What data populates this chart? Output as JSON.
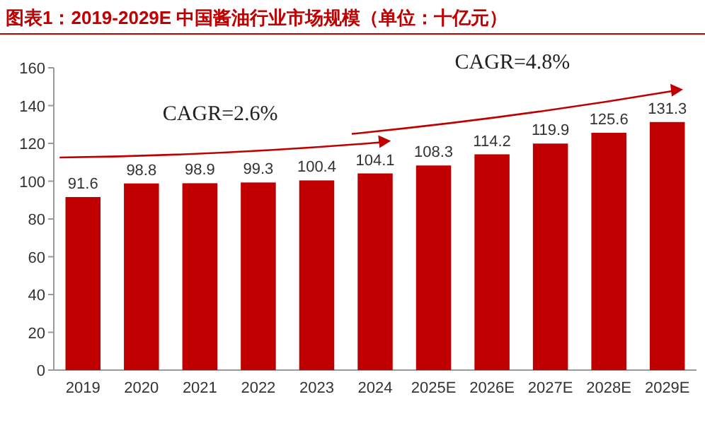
{
  "chart_data": {
    "type": "bar",
    "title": "图表1：2019-2029E 中国酱油行业市场规模（单位：十亿元）",
    "categories": [
      "2019",
      "2020",
      "2021",
      "2022",
      "2023",
      "2024",
      "2025E",
      "2026E",
      "2027E",
      "2028E",
      "2029E"
    ],
    "values": [
      91.6,
      98.8,
      98.9,
      99.3,
      100.4,
      104.1,
      108.3,
      114.2,
      119.9,
      125.6,
      131.3
    ],
    "color": "#c00000",
    "ylim": [
      0,
      160
    ],
    "yticks": [
      0,
      20,
      40,
      60,
      80,
      100,
      120,
      140,
      160
    ],
    "grid": false,
    "data_labels": true,
    "annotations": [
      "CAGR=2.6%",
      "CAGR=4.8%"
    ]
  }
}
